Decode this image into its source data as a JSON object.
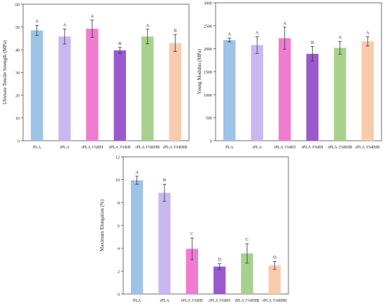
{
  "chart_data": [
    {
      "type": "bar",
      "title": "",
      "xlabel": "",
      "ylabel": "Ultimate Tensile Strength (MPa)",
      "ylim": [
        0,
        60
      ],
      "yticks": [
        0,
        10,
        20,
        30,
        40,
        50,
        60
      ],
      "grid": false,
      "categories": [
        "PLA",
        "rPLA",
        "rPLA 1%RH",
        "rPLA 3%RH",
        "rPLA 1%RHB",
        "rPLA 3%RHB"
      ],
      "values": [
        48.5,
        45.8,
        49.2,
        39.7,
        45.8,
        42.9
      ],
      "errors": [
        2.2,
        3.3,
        3.8,
        1.3,
        3.2,
        3.7
      ],
      "significance": [
        "A",
        "A",
        "A",
        "B",
        "A",
        "B"
      ],
      "colors": [
        "#9dc3e6",
        "#c9b8f0",
        "#f07cd0",
        "#9b59d0",
        "#a9d18e",
        "#f8cbad"
      ]
    },
    {
      "type": "bar",
      "title": "",
      "xlabel": "",
      "ylabel": "Young Modulus (MPa)",
      "ylim": [
        0,
        3000
      ],
      "yticks": [
        0,
        500,
        1000,
        1500,
        2000,
        2500,
        3000
      ],
      "grid": false,
      "categories": [
        "PLA",
        "rPLA",
        "rPLA 1%RH",
        "rPLA 3%RH",
        "rPLA 1%RHB",
        "rPLA 3%RHB"
      ],
      "values": [
        2190,
        2080,
        2230,
        1890,
        2020,
        2160
      ],
      "errors": [
        40,
        180,
        240,
        160,
        140,
        100
      ],
      "significance": [
        "A",
        "A",
        "A",
        "B",
        "A",
        "A"
      ],
      "colors": [
        "#9dc3e6",
        "#c9b8f0",
        "#f07cd0",
        "#9b59d0",
        "#a9d18e",
        "#f8cbad"
      ]
    },
    {
      "type": "bar",
      "title": "",
      "xlabel": "",
      "ylabel": "Maximum Elongation (%)",
      "ylim": [
        0,
        12
      ],
      "yticks": [
        0,
        2,
        4,
        6,
        8,
        10,
        12
      ],
      "grid": false,
      "categories": [
        "PLA",
        "rPLA",
        "rPLA 1%RH",
        "rPLA 3%RH",
        "rPLA 1%RHB",
        "rPLA 3%RHB"
      ],
      "values": [
        9.95,
        8.85,
        3.95,
        2.4,
        3.55,
        2.5
      ],
      "errors": [
        0.35,
        0.75,
        0.95,
        0.25,
        0.85,
        0.35
      ],
      "significance": [
        "A",
        "B",
        "C",
        "D",
        "C",
        "D"
      ],
      "colors": [
        "#9dc3e6",
        "#c9b8f0",
        "#f07cd0",
        "#9b59d0",
        "#a9d18e",
        "#f8cbad"
      ]
    }
  ]
}
